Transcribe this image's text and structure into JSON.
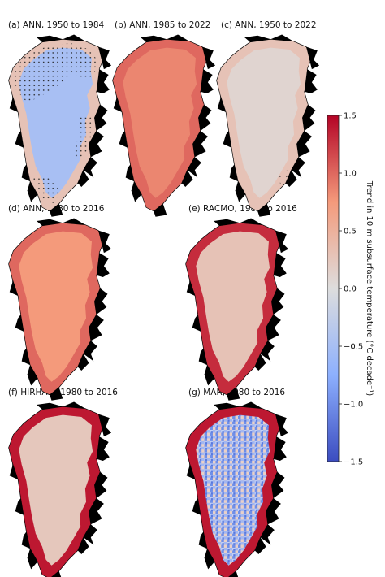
{
  "chart_data": {
    "type": "heatmap",
    "panels": [
      {
        "title": "(a) ANN, 1950 to 1984",
        "shading": "cool",
        "stippling": "heavy",
        "trend_interior": -0.5,
        "trend_margin": 0.3
      },
      {
        "title": "(b) ANN, 1985 to 2022",
        "shading": "warm",
        "stippling": "none",
        "trend_interior": 0.85,
        "trend_margin": 1.0
      },
      {
        "title": "(c) ANN, 1950 to 2022",
        "shading": "neutral",
        "stippling": "light",
        "trend_interior": 0.1,
        "trend_margin": 0.3
      },
      {
        "title": "(d) ANN, 1980 to 2016",
        "shading": "warm",
        "stippling": "none",
        "trend_interior": 0.75,
        "trend_margin": 1.0
      },
      {
        "title": "(e) RACMO, 1980 to 2016",
        "shading": "light-warm",
        "stippling": "none",
        "trend_interior": 0.3,
        "trend_margin": 1.3
      },
      {
        "title": "(f) HIRHAM, 1980 to 2016",
        "shading": "light-warm",
        "stippling": "none",
        "trend_interior": 0.25,
        "trend_margin": 1.4
      },
      {
        "title": "(g) MAR, 1980 to 2016",
        "shading": "mixed",
        "stippling": "none",
        "trend_interior": -0.6,
        "trend_margin": 1.4
      }
    ],
    "colorbar": {
      "label": "Trend in 10 m subsurface temperature (°C decade⁻¹)",
      "ticks": [
        "1.5",
        "1.0",
        "0.5",
        "0.0",
        "−0.5",
        "−1.0",
        "−1.5"
      ],
      "range": [
        -1.5,
        1.5
      ],
      "colormap": "coolwarm"
    }
  },
  "colors": {
    "coast": "#000000",
    "min": "#3b4cc0",
    "mid": "#dddddd",
    "max": "#b40426"
  }
}
